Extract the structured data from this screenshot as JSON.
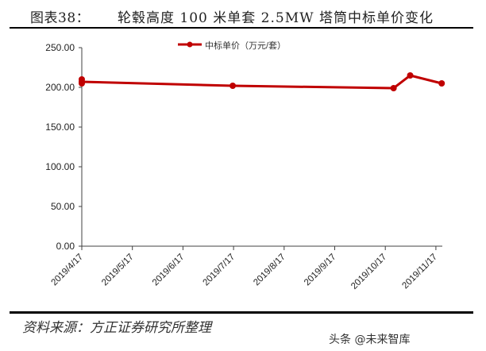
{
  "header": {
    "figure_number": "图表38：",
    "figure_title": "轮毂高度 100 米单套 2.5MW 塔筒中标单价变化"
  },
  "footer": {
    "source": "资料来源：方正证券研究所整理",
    "watermark": "头条 @未来智库"
  },
  "colors": {
    "series": "#C00000",
    "axis": "#404040",
    "text": "#222222"
  },
  "chart_data": {
    "type": "line",
    "title": "轮毂高度 100 米单套 2.5MW 塔筒中标单价变化",
    "xlabel": "",
    "ylabel": "",
    "ylim": [
      0,
      250
    ],
    "yticks": [
      "0.00",
      "50.00",
      "100.00",
      "150.00",
      "200.00",
      "250.00"
    ],
    "xticks": [
      "2019/4/17",
      "2019/5/17",
      "2019/6/17",
      "2019/7/17",
      "2019/8/17",
      "2019/9/17",
      "2019/10/17",
      "2019/11/17"
    ],
    "grid": false,
    "legend_position": "top",
    "series": [
      {
        "name": "中标单价（万元/套）",
        "x": [
          "2019/4/17",
          "2019/4/17",
          "2019/4/17",
          "2019/7/17",
          "2019/10/22",
          "2019/11/1",
          "2019/11/20"
        ],
        "values": [
          210,
          205,
          207,
          202,
          199,
          215,
          205
        ]
      }
    ]
  }
}
